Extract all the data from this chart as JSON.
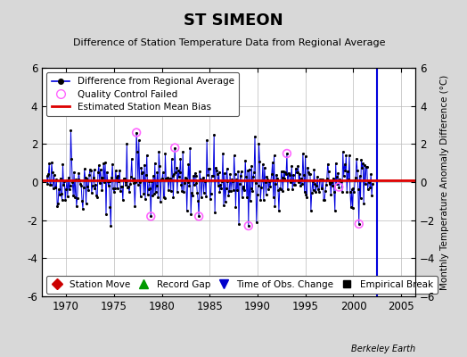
{
  "title": "ST SIMEON",
  "subtitle": "Difference of Station Temperature Data from Regional Average",
  "ylabel": "Monthly Temperature Anomaly Difference (°C)",
  "credit": "Berkeley Earth",
  "ylim": [
    -6,
    6
  ],
  "xlim": [
    1967.5,
    2006.5
  ],
  "yticks": [
    -6,
    -4,
    -2,
    0,
    2,
    4,
    6
  ],
  "xticks": [
    1970,
    1975,
    1980,
    1985,
    1990,
    1995,
    2000,
    2005
  ],
  "bias_value": 0.1,
  "bg_color": "#d8d8d8",
  "plot_bg_color": "#ffffff",
  "line_color": "#0000dd",
  "bias_color": "#dd0000",
  "qc_color": "#ff66ff",
  "seed": 42,
  "n_months": 408,
  "start_year": 1968.0,
  "end_year": 2002.0
}
